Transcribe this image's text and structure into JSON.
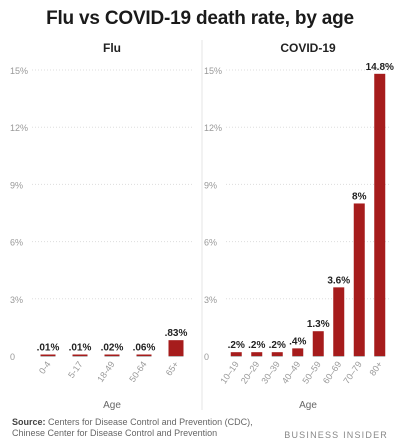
{
  "title": "Flu vs COVID-19 death rate, by age",
  "source_label": "Source:",
  "source_text_1": "Centers for Disease Control and Prevention (CDC),",
  "source_text_2": "Chinese Center for Disease Control and Prevention",
  "brand": "BUSINESS INSIDER",
  "colors": {
    "bar": "#a61c1c",
    "grid": "#dddddd",
    "tick": "#999999",
    "label": "#222222"
  },
  "chart_data": [
    {
      "type": "bar",
      "title": "Flu",
      "xlabel": "Age",
      "ylabel": "",
      "ylim": [
        0,
        15
      ],
      "yticks": [
        0,
        3,
        6,
        9,
        12,
        15
      ],
      "yticklabels": [
        "0",
        "3%",
        "6%",
        "9%",
        "12%",
        "15%"
      ],
      "grid": true,
      "categories": [
        "0-4",
        "5-17",
        "18-49",
        "50-64",
        "65+"
      ],
      "values": [
        0.01,
        0.01,
        0.02,
        0.06,
        0.83
      ],
      "value_labels": [
        ".01%",
        ".01%",
        ".02%",
        ".06%",
        ".83%"
      ]
    },
    {
      "type": "bar",
      "title": "COVID-19",
      "xlabel": "Age",
      "ylabel": "",
      "ylim": [
        0,
        15
      ],
      "yticks": [
        0,
        3,
        6,
        9,
        12,
        15
      ],
      "yticklabels": [
        "0",
        "3%",
        "6%",
        "9%",
        "12%",
        "15%"
      ],
      "grid": true,
      "categories": [
        "10–19",
        "20–29",
        "30–39",
        "40–49",
        "50–59",
        "60–69",
        "70–79",
        "80+"
      ],
      "values": [
        0.2,
        0.2,
        0.2,
        0.4,
        1.3,
        3.6,
        8,
        14.8
      ],
      "value_labels": [
        ".2%",
        ".2%",
        ".2%",
        ".4%",
        "1.3%",
        "3.6%",
        "8%",
        "14.8%"
      ]
    }
  ]
}
